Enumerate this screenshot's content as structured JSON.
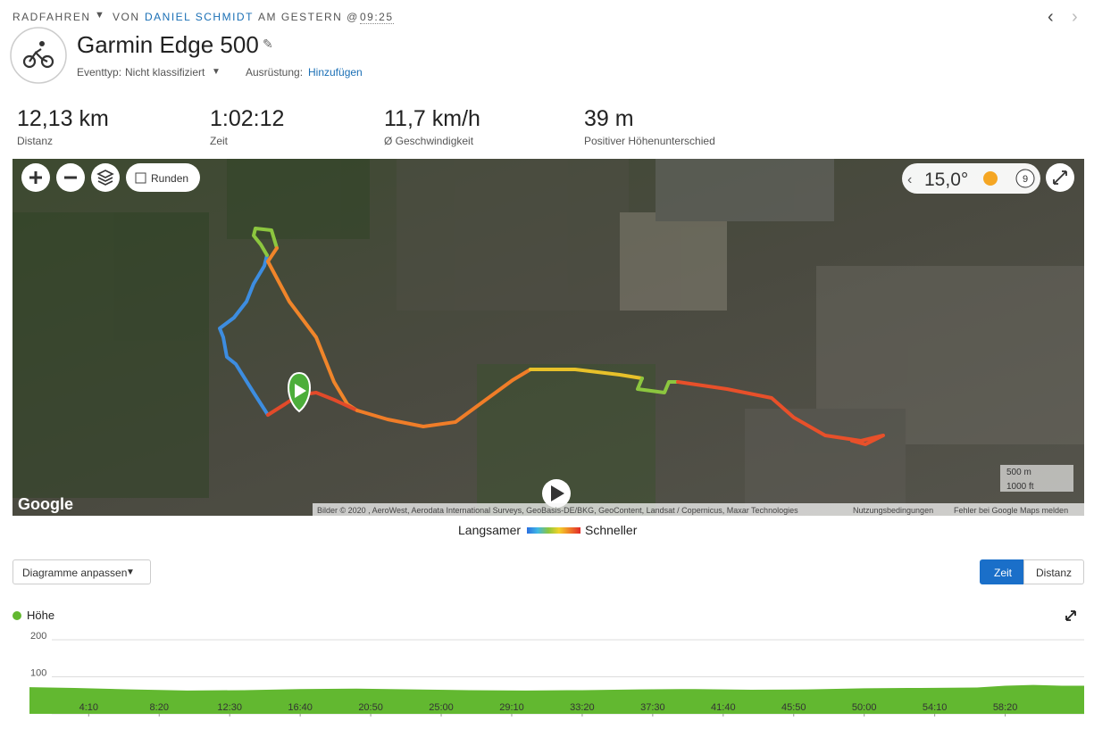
{
  "header": {
    "activity_type": "RADFAHREN",
    "by": "VON",
    "user": "DANIEL SCHMIDT",
    "at": "AM GESTERN @",
    "time": "09:25",
    "title": "Garmin Edge 500",
    "event_type_label": "Eventtyp:",
    "event_type": "Nicht klassifiziert",
    "equipment_label": "Ausrüstung:",
    "equipment_link": "Hinzufügen"
  },
  "stats": [
    {
      "value": "12,13 km",
      "label": "Distanz"
    },
    {
      "value": "1:02:12",
      "label": "Zeit"
    },
    {
      "value": "11,7 km/h",
      "label": "Ø Geschwindigkeit"
    },
    {
      "value": "39 m",
      "label": "Positiver Höhenunterschied"
    }
  ],
  "map": {
    "laps": "Runden",
    "weather": "15,0°",
    "weather_badge": "9",
    "scale": [
      "500 m",
      "1000 ft"
    ],
    "logo": "Google",
    "attribution": "Bilder © 2020 , AeroWest, Aerodata International Surveys, GeoBasis-DE/BKG, GeoContent, Landsat / Copernicus, Maxar Technologies",
    "terms": "Nutzungsbedingungen",
    "report": "Fehler bei Google Maps melden"
  },
  "speed_legend": {
    "slow": "Langsamer",
    "fast": "Schneller"
  },
  "chart_controls": {
    "customize": "Diagramme anpassen",
    "tabs": [
      "Zeit",
      "Distanz"
    ]
  },
  "elevation_chart": {
    "type": "area",
    "series": [
      {
        "name": "Höhe",
        "color": "#62b830",
        "x": [
          40,
          200,
          400,
          600,
          800,
          1000,
          1200,
          1400,
          1600,
          1800,
          2000,
          2200,
          2400,
          2600,
          2800,
          3000,
          3200,
          3400,
          3500,
          3600,
          3700,
          3780
        ],
        "values": [
          72,
          70,
          66,
          63,
          64,
          67,
          68,
          66,
          64,
          63,
          64,
          66,
          67,
          65,
          66,
          69,
          70,
          71,
          76,
          78,
          76,
          76
        ]
      }
    ],
    "xlim": [
      40,
      3780
    ],
    "ylim": [
      0,
      200
    ],
    "yticks": [
      0,
      100,
      200
    ],
    "grid": true,
    "xticks": [
      {
        "value": 250,
        "label": "4:10"
      },
      {
        "value": 500,
        "label": "8:20"
      },
      {
        "value": 750,
        "label": "12:30"
      },
      {
        "value": 1000,
        "label": "16:40"
      },
      {
        "value": 1250,
        "label": "20:50"
      },
      {
        "value": 1500,
        "label": "25:00"
      },
      {
        "value": 1750,
        "label": "29:10"
      },
      {
        "value": 2000,
        "label": "33:20"
      },
      {
        "value": 2250,
        "label": "37:30"
      },
      {
        "value": 2500,
        "label": "41:40"
      },
      {
        "value": 2750,
        "label": "45:50"
      },
      {
        "value": 3000,
        "label": "50:00"
      },
      {
        "value": 3250,
        "label": "54:10"
      },
      {
        "value": 3500,
        "label": "58:20"
      }
    ]
  }
}
